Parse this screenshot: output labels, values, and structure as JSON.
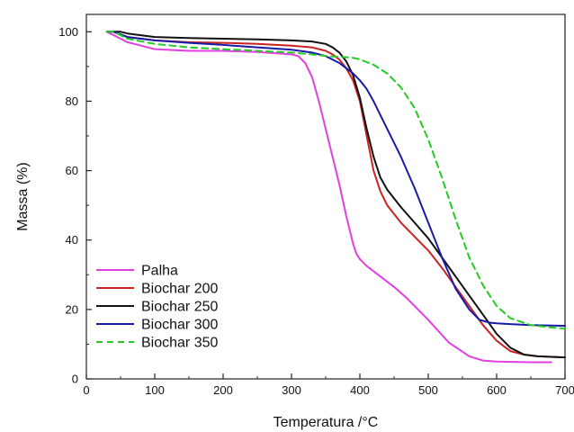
{
  "chart_data": {
    "type": "line",
    "xlabel": "Temperatura /°C",
    "ylabel": "Massa (%)",
    "xlim": [
      0,
      700
    ],
    "ylim": [
      0,
      105
    ],
    "xticks": [
      0,
      100,
      200,
      300,
      400,
      500,
      600,
      700
    ],
    "yticks": [
      0,
      20,
      40,
      60,
      80,
      100
    ],
    "grid": false,
    "legend_position": "bottom-left",
    "series": [
      {
        "name": "Palha",
        "color": "#e040e0",
        "dash": "solid",
        "x": [
          30,
          40,
          60,
          80,
          100,
          150,
          200,
          250,
          300,
          310,
          320,
          330,
          340,
          350,
          360,
          370,
          380,
          390,
          395,
          400,
          410,
          430,
          450,
          470,
          500,
          530,
          560,
          580,
          600,
          650,
          680
        ],
        "y": [
          100,
          99,
          97,
          96,
          95,
          94.5,
          94.5,
          94.2,
          93.5,
          93,
          91,
          87,
          80,
          72,
          64,
          56,
          47,
          39,
          36,
          34.5,
          32.5,
          29.5,
          26.5,
          23,
          17,
          10.5,
          6.5,
          5.3,
          5,
          4.8,
          4.8
        ]
      },
      {
        "name": "Biochar 200",
        "color": "#cc2222",
        "dash": "solid",
        "x": [
          30,
          40,
          60,
          100,
          150,
          200,
          250,
          300,
          330,
          350,
          360,
          370,
          380,
          390,
          400,
          410,
          420,
          430,
          440,
          460,
          480,
          500,
          520,
          540,
          560,
          580,
          600,
          620,
          640,
          660,
          700
        ],
        "y": [
          100,
          100,
          98.5,
          97.5,
          97,
          96.8,
          96.5,
          96,
          95.5,
          94.5,
          93.5,
          92,
          89.5,
          86,
          80,
          70,
          60,
          54,
          50,
          45,
          41,
          37,
          32,
          26.5,
          21,
          15.5,
          11,
          8,
          7,
          6.5,
          6.2
        ]
      },
      {
        "name": "Biochar 250",
        "color": "#111111",
        "dash": "solid",
        "x": [
          40,
          50,
          60,
          100,
          150,
          200,
          250,
          300,
          330,
          350,
          360,
          370,
          380,
          390,
          400,
          410,
          420,
          430,
          440,
          460,
          480,
          500,
          520,
          540,
          560,
          580,
          600,
          620,
          640,
          660,
          700
        ],
        "y": [
          100,
          100,
          99.5,
          98.5,
          98.2,
          98,
          97.8,
          97.5,
          97.2,
          96.5,
          95.5,
          94,
          91.5,
          87.5,
          81,
          72,
          64,
          58,
          54.5,
          49.5,
          45,
          40.5,
          35,
          29.5,
          24,
          18.5,
          13,
          9,
          7,
          6.5,
          6.2
        ]
      },
      {
        "name": "Biochar 300",
        "color": "#1a1aa8",
        "dash": "solid",
        "x": [
          30,
          40,
          60,
          100,
          150,
          200,
          250,
          300,
          330,
          350,
          370,
          390,
          400,
          410,
          420,
          430,
          440,
          460,
          480,
          500,
          520,
          540,
          560,
          575,
          590,
          600,
          620,
          650,
          700
        ],
        "y": [
          100,
          100,
          98.5,
          97.5,
          96.8,
          96.2,
          95.5,
          94.8,
          94,
          93,
          91,
          88,
          86,
          83.5,
          80,
          76,
          72,
          64,
          55,
          45,
          35,
          26,
          20,
          17,
          16.2,
          16,
          15.8,
          15.5,
          15.3
        ]
      },
      {
        "name": "Biochar 350",
        "color": "#22cc22",
        "dash": "dashed",
        "x": [
          30,
          40,
          60,
          100,
          150,
          200,
          250,
          300,
          330,
          350,
          370,
          390,
          400,
          420,
          440,
          460,
          480,
          500,
          520,
          540,
          560,
          580,
          600,
          620,
          650,
          680,
          700
        ],
        "y": [
          100,
          100,
          98,
          96.5,
          95.5,
          95,
          94.5,
          94,
          93.5,
          93,
          92.8,
          92.5,
          92,
          90.5,
          88,
          84,
          78,
          69,
          58,
          46,
          35,
          27,
          21,
          17.5,
          15.5,
          14.8,
          14.5
        ]
      }
    ]
  }
}
